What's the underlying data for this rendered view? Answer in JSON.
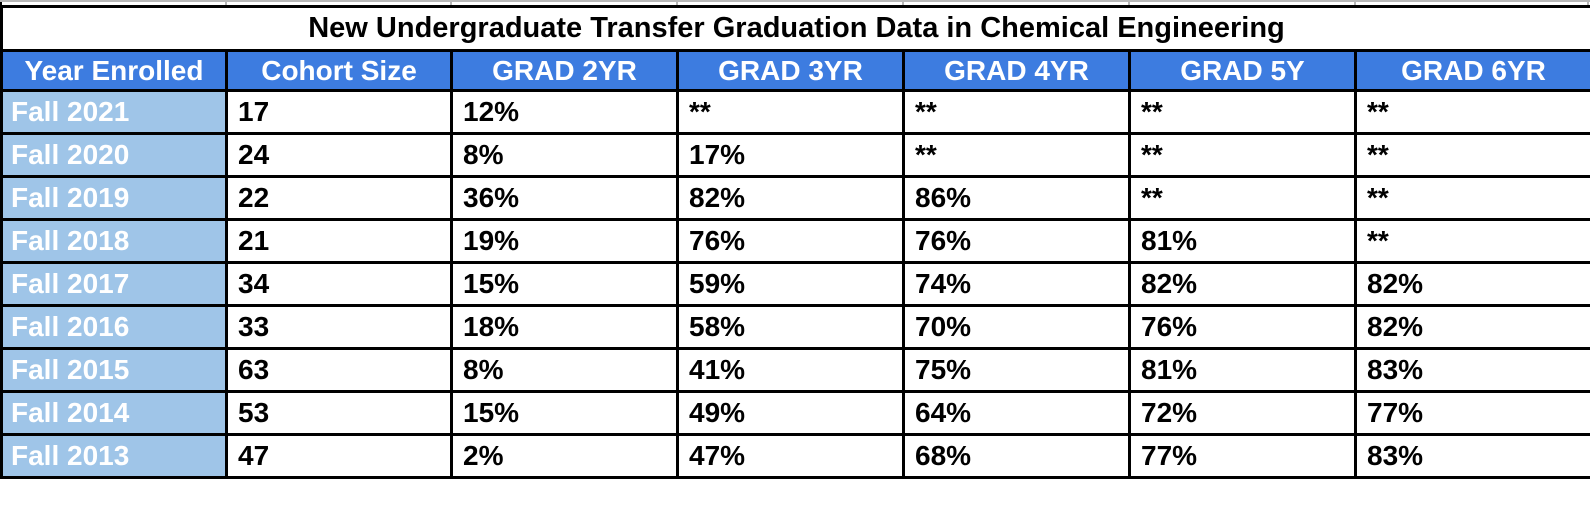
{
  "colors": {
    "header_bg": "#3d7ce0",
    "header_text": "#ffffff",
    "year_cell_bg": "#9fc5e8",
    "year_cell_text": "#ffffff",
    "cell_text": "#000000",
    "border": "#000000",
    "gridline_remnant": "#b7b7b7"
  },
  "chart_data": {
    "type": "table",
    "title": "New Undergraduate Transfer Graduation Data in Chemical Engineering",
    "columns": [
      "Year Enrolled",
      "Cohort Size",
      "GRAD 2YR",
      "GRAD 3YR",
      "GRAD 4YR",
      "GRAD 5Y",
      "GRAD 6YR"
    ],
    "rows": [
      [
        "Fall 2021",
        "17",
        "12%",
        "**",
        "**",
        "**",
        "**"
      ],
      [
        "Fall 2020",
        "24",
        "8%",
        "17%",
        "**",
        "**",
        "**"
      ],
      [
        "Fall 2019",
        "22",
        "36%",
        "82%",
        "86%",
        "**",
        "**"
      ],
      [
        "Fall 2018",
        "21",
        "19%",
        "76%",
        "76%",
        "81%",
        "**"
      ],
      [
        "Fall 2017",
        "34",
        "15%",
        "59%",
        "74%",
        "82%",
        "82%"
      ],
      [
        "Fall 2016",
        "33",
        "18%",
        "58%",
        "70%",
        "76%",
        "82%"
      ],
      [
        "Fall 2015",
        "63",
        "8%",
        "41%",
        "75%",
        "81%",
        "83%"
      ],
      [
        "Fall 2014",
        "53",
        "15%",
        "49%",
        "64%",
        "72%",
        "77%"
      ],
      [
        "Fall 2013",
        "47",
        "2%",
        "47%",
        "68%",
        "77%",
        "83%"
      ]
    ],
    "masked_value_note": "**"
  }
}
